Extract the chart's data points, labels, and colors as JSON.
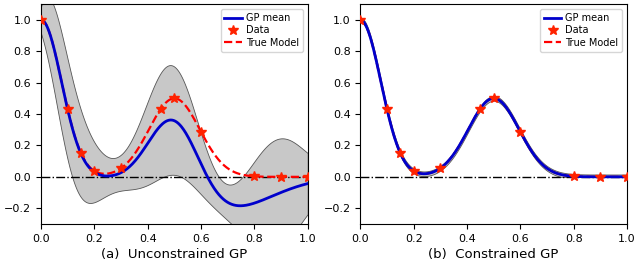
{
  "title_a": "(a)  Unconstrained GP",
  "title_b": "(b)  Constrained GP",
  "xlim": [
    0,
    1
  ],
  "ylim": [
    -0.3,
    1.1
  ],
  "yticks": [
    -0.2,
    0,
    0.2,
    0.4,
    0.6,
    0.8,
    1.0
  ],
  "xticks": [
    0,
    0.2,
    0.4,
    0.6,
    0.8,
    1.0
  ],
  "gp_mean_color": "#0000cc",
  "true_model_color": "#ff0000",
  "data_color": "#ff2200",
  "zeroline_color": "#000000",
  "ci_facecolor": "#c8c8c8",
  "ci_edgecolor": "#555555",
  "data_x": [
    0.0,
    0.1,
    0.15,
    0.2,
    0.3,
    0.45,
    0.5,
    0.6,
    0.8,
    0.9,
    1.0
  ],
  "legend_gp": "GP mean",
  "legend_data": "Data",
  "legend_true": "True Model"
}
